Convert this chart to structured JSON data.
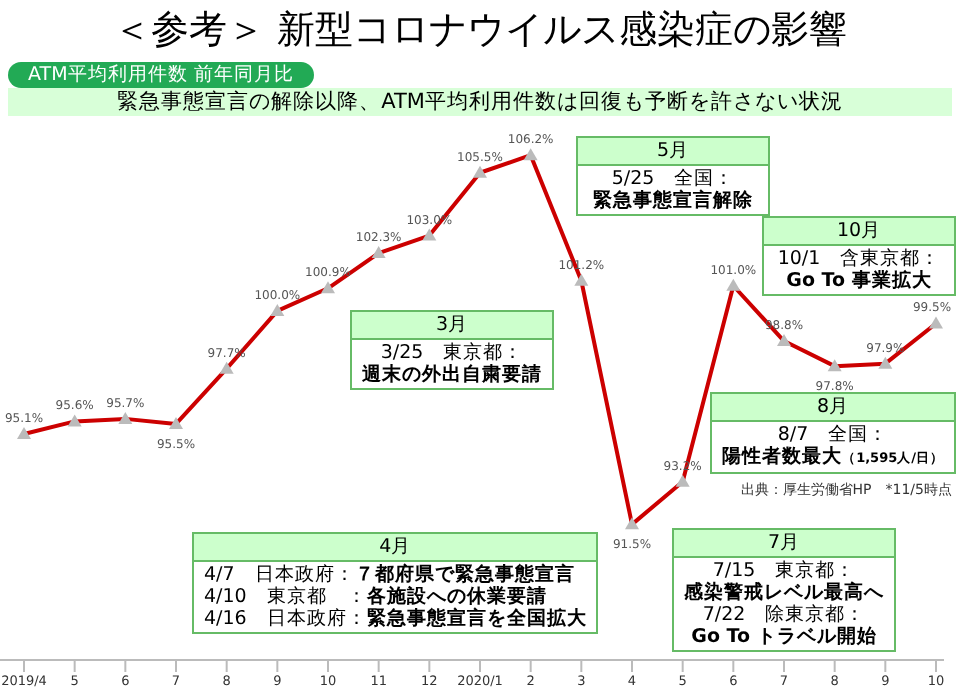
{
  "chart_data": {
    "type": "line",
    "title": "＜参考＞ 新型コロナウイルス感染症の影響",
    "ylabel": "ATM平均利用件数 前年同月比",
    "subtitle": "緊急事態宣言の解除以降、ATM平均利用件数は回復も予断を許さない状況",
    "categories": [
      "2019/4",
      "5",
      "6",
      "7",
      "8",
      "9",
      "10",
      "11",
      "12",
      "2020/1",
      "2",
      "3",
      "4",
      "5",
      "6",
      "7",
      "8",
      "9",
      "10"
    ],
    "series": [
      {
        "color": "#cc0000",
        "values": [
          95.1,
          95.6,
          95.7,
          95.5,
          97.7,
          100.0,
          100.9,
          102.3,
          103.0,
          105.5,
          106.2,
          101.2,
          91.5,
          93.2,
          101.0,
          98.8,
          97.8,
          97.9,
          99.5
        ],
        "value_labels": [
          "95.1%",
          "95.6%",
          "95.7%",
          "95.5%",
          "97.7%",
          "100.0%",
          "100.9%",
          "102.3%",
          "103.0%",
          "105.5%",
          "106.2%",
          "101.2%",
          "91.5%",
          "93.2%",
          "101.0%",
          "98.8%",
          "97.8%",
          "97.9%",
          "99.5%"
        ]
      }
    ],
    "marker": "triangle",
    "line_style": "solid",
    "grid": false,
    "legend": false,
    "annotations": [
      "3月\n3/25　東京都：週末の外出自粛要請",
      "5月\n5/25　全国：緊急事態宣言解除",
      "10月\n10/1　含東京都：Go To 事業拡大",
      "8月\n8/7　全国：陽性者数最大（1,595人/日）",
      "4月\n4/7　日本政府：７都府県で緊急事態宣言\n4/10　東京都　：各施設への休業要請\n4/16　日本政府：緊急事態宣言を全国拡大",
      "7月\n7/15　東京都：感染警戒レベル最高へ\n7/22　除東京都：Go To トラベル開始",
      "出典：厚生労働省HP　*11/5時点"
    ]
  }
}
